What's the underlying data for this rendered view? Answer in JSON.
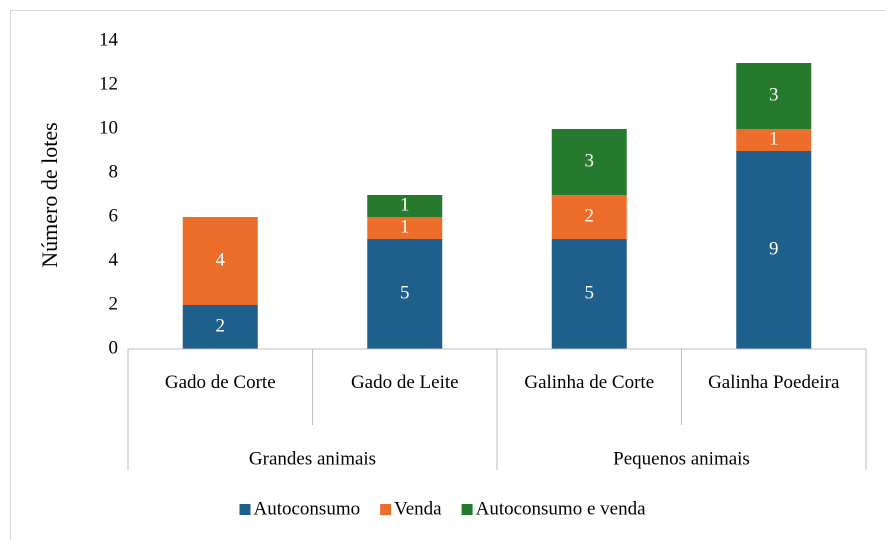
{
  "chart_data": {
    "type": "stacked_bar",
    "ylabel": "Número de lotes",
    "categories": [
      "Gado de Corte",
      "Gado de Leite",
      "Galinha de Corte",
      "Galinha Poedeira"
    ],
    "groups": [
      {
        "name": "Grandes animais",
        "span": 2
      },
      {
        "name": "Pequenos animais",
        "span": 2
      }
    ],
    "series": [
      {
        "name": "Autoconsumo",
        "color": "#1f5f8b",
        "values": [
          2,
          5,
          5,
          9
        ]
      },
      {
        "name": "Venda",
        "color": "#ed6d2b",
        "values": [
          4,
          1,
          2,
          1
        ]
      },
      {
        "name": "Autoconsumo e venda",
        "color": "#267a2e",
        "values": [
          null,
          1,
          3,
          3
        ]
      }
    ],
    "ylim": [
      0,
      14
    ],
    "yticks": [
      0,
      2,
      4,
      6,
      8,
      10,
      12,
      14
    ],
    "grid": false,
    "legend": "bottom"
  }
}
